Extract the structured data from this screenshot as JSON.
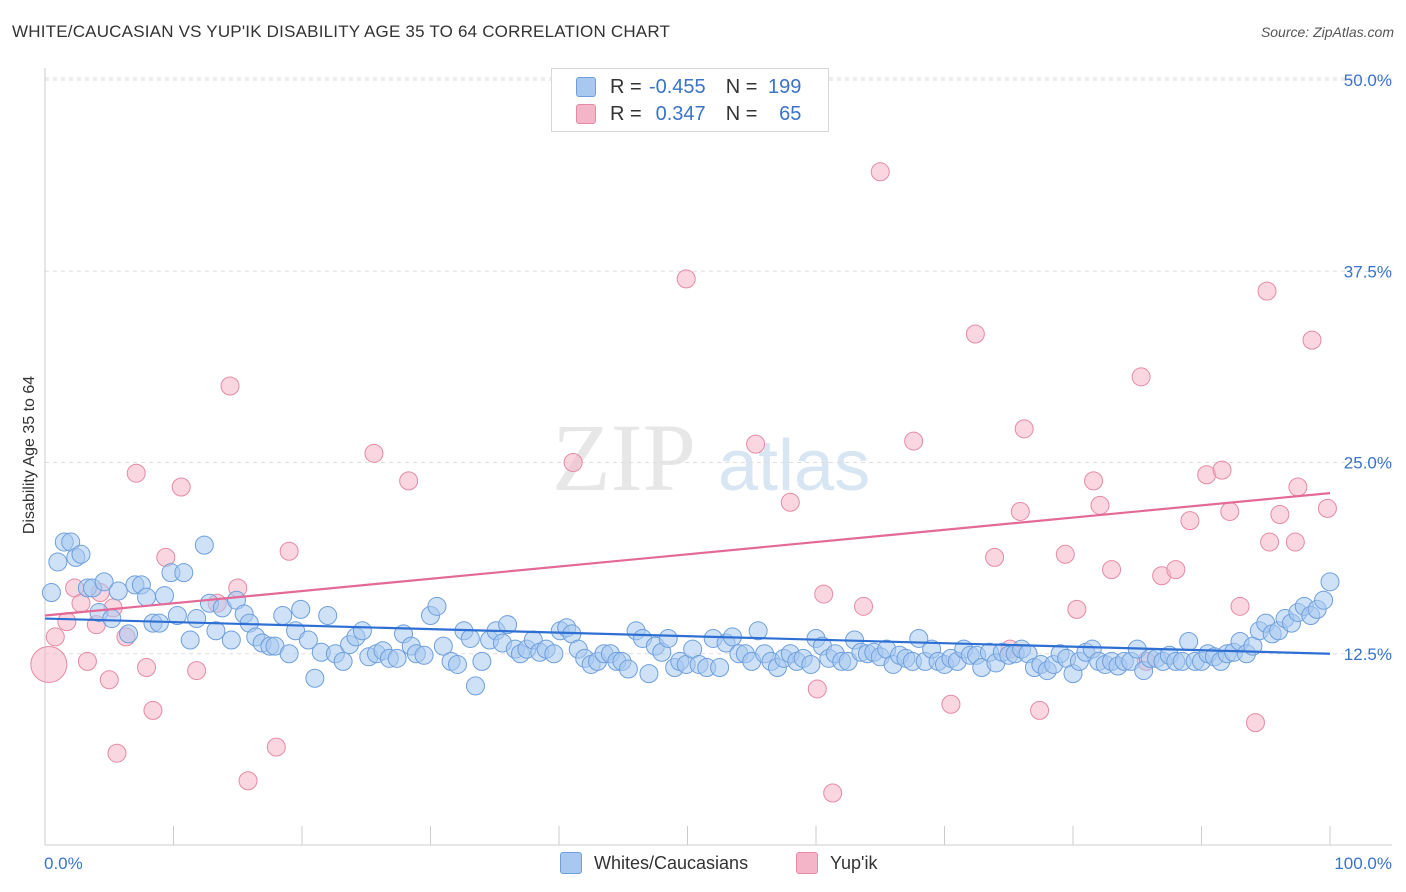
{
  "title": "WHITE/CAUCASIAN VS YUP'IK DISABILITY AGE 35 TO 64 CORRELATION CHART",
  "source": "Source: ZipAtlas.com",
  "watermark": {
    "zip": "ZIP",
    "atlas": "atlas"
  },
  "legend": {
    "rows": [
      {
        "r_label": "R =",
        "r_value": "-0.455",
        "n_label": "N =",
        "n_value": "199",
        "color": "#a8c8f0"
      },
      {
        "r_label": "R =",
        "r_value": "0.347",
        "n_label": "N =",
        "n_value": "65",
        "color": "#f5b5c8"
      }
    ]
  },
  "colors": {
    "blue_fill": "#a8c8f0",
    "blue_stroke": "#6e9fdc",
    "blue_line": "#2d6fd3",
    "pink_fill": "#f5b5c8",
    "pink_stroke": "#e58aa5",
    "pink_line": "#e36a96",
    "axis_text": "#3a73c8",
    "grid": "#dddddd"
  },
  "chart_data": {
    "type": "scatter",
    "title": "WHITE/CAUCASIAN VS YUP'IK DISABILITY AGE 35 TO 64 CORRELATION CHART",
    "xlabel": "",
    "ylabel": "Disability Age 35 to 64",
    "xlim": [
      0,
      100
    ],
    "ylim": [
      0,
      50
    ],
    "x_tick_labels": [
      "0.0%",
      "100.0%"
    ],
    "y_ticks": [
      12.5,
      25.0,
      37.5,
      50.0
    ],
    "y_tick_labels": [
      "12.5%",
      "25.0%",
      "37.5%",
      "50.0%"
    ],
    "grid": true,
    "legend_position": "bottom",
    "series": [
      {
        "name": "Whites/Caucasians",
        "color": "#a8c8f0",
        "trend": {
          "x": [
            0,
            100
          ],
          "y": [
            14.8,
            12.5
          ]
        },
        "points": [
          [
            0.5,
            16.5
          ],
          [
            1,
            18.5
          ],
          [
            1.5,
            19.8
          ],
          [
            2,
            19.8
          ],
          [
            2.4,
            18.8
          ],
          [
            2.8,
            19.0
          ],
          [
            3.3,
            16.8
          ],
          [
            3.7,
            16.8
          ],
          [
            4.2,
            15.2
          ],
          [
            4.6,
            17.2
          ],
          [
            5.2,
            14.8
          ],
          [
            5.7,
            16.6
          ],
          [
            6.5,
            13.8
          ],
          [
            7,
            17.0
          ],
          [
            7.5,
            17.0
          ],
          [
            7.9,
            16.2
          ],
          [
            8.4,
            14.5
          ],
          [
            8.9,
            14.5
          ],
          [
            9.3,
            16.3
          ],
          [
            9.8,
            17.8
          ],
          [
            10.3,
            15.0
          ],
          [
            10.8,
            17.8
          ],
          [
            11.3,
            13.4
          ],
          [
            11.8,
            14.8
          ],
          [
            12.4,
            19.6
          ],
          [
            12.8,
            15.8
          ],
          [
            13.3,
            14.0
          ],
          [
            13.8,
            15.5
          ],
          [
            14.5,
            13.4
          ],
          [
            14.9,
            16.0
          ],
          [
            15.5,
            15.1
          ],
          [
            15.9,
            14.5
          ],
          [
            16.4,
            13.6
          ],
          [
            16.9,
            13.2
          ],
          [
            17.5,
            13.0
          ],
          [
            17.9,
            13.0
          ],
          [
            18.5,
            15.0
          ],
          [
            19.0,
            12.5
          ],
          [
            19.5,
            14.0
          ],
          [
            19.9,
            15.4
          ],
          [
            20.5,
            13.4
          ],
          [
            21.0,
            10.9
          ],
          [
            21.5,
            12.6
          ],
          [
            22,
            15.0
          ],
          [
            22.6,
            12.5
          ],
          [
            23.2,
            12.0
          ],
          [
            23.7,
            13.1
          ],
          [
            24.2,
            13.6
          ],
          [
            24.7,
            14.0
          ],
          [
            25.2,
            12.3
          ],
          [
            25.8,
            12.5
          ],
          [
            26.3,
            12.7
          ],
          [
            26.8,
            12.2
          ],
          [
            27.4,
            12.2
          ],
          [
            27.9,
            13.8
          ],
          [
            28.5,
            13.0
          ],
          [
            28.9,
            12.5
          ],
          [
            29.5,
            12.4
          ],
          [
            30.0,
            15.0
          ],
          [
            30.5,
            15.6
          ],
          [
            31.0,
            13.0
          ],
          [
            31.6,
            12.0
          ],
          [
            32.1,
            11.8
          ],
          [
            32.6,
            14.0
          ],
          [
            33.1,
            13.5
          ],
          [
            33.5,
            10.4
          ],
          [
            34.0,
            12.0
          ],
          [
            34.6,
            13.4
          ],
          [
            35.1,
            14.0
          ],
          [
            35.6,
            13.2
          ],
          [
            36.0,
            14.4
          ],
          [
            36.6,
            12.8
          ],
          [
            37.0,
            12.5
          ],
          [
            37.5,
            12.8
          ],
          [
            38.0,
            13.4
          ],
          [
            38.5,
            12.6
          ],
          [
            39.0,
            12.8
          ],
          [
            39.6,
            12.5
          ],
          [
            40.1,
            14.0
          ],
          [
            40.6,
            14.2
          ],
          [
            41.0,
            13.8
          ],
          [
            41.5,
            12.8
          ],
          [
            42.0,
            12.2
          ],
          [
            42.5,
            11.8
          ],
          [
            43.0,
            12.0
          ],
          [
            43.5,
            12.5
          ],
          [
            44.0,
            12.5
          ],
          [
            44.5,
            12.0
          ],
          [
            44.9,
            12.0
          ],
          [
            45.4,
            11.5
          ],
          [
            46.0,
            14.0
          ],
          [
            46.5,
            13.5
          ],
          [
            47.0,
            11.2
          ],
          [
            47.5,
            13.0
          ],
          [
            48.0,
            12.6
          ],
          [
            48.5,
            13.5
          ],
          [
            49.0,
            11.6
          ],
          [
            49.4,
            12.0
          ],
          [
            49.9,
            11.8
          ],
          [
            50.4,
            12.8
          ],
          [
            50.9,
            11.8
          ],
          [
            51.5,
            11.6
          ],
          [
            52.0,
            13.5
          ],
          [
            52.5,
            11.6
          ],
          [
            53.0,
            13.2
          ],
          [
            53.5,
            13.6
          ],
          [
            54.0,
            12.5
          ],
          [
            54.5,
            12.5
          ],
          [
            55.0,
            12.0
          ],
          [
            55.5,
            14.0
          ],
          [
            56.0,
            12.5
          ],
          [
            56.5,
            12.0
          ],
          [
            57.0,
            11.6
          ],
          [
            57.5,
            12.2
          ],
          [
            58.0,
            12.5
          ],
          [
            58.5,
            12.0
          ],
          [
            59.0,
            12.2
          ],
          [
            59.6,
            11.8
          ],
          [
            60.0,
            13.5
          ],
          [
            60.5,
            13.0
          ],
          [
            61.0,
            12.2
          ],
          [
            61.5,
            12.5
          ],
          [
            62.0,
            12.0
          ],
          [
            62.5,
            12.0
          ],
          [
            63.0,
            13.4
          ],
          [
            63.5,
            12.6
          ],
          [
            64.0,
            12.5
          ],
          [
            64.5,
            12.6
          ],
          [
            65.0,
            12.3
          ],
          [
            65.5,
            12.8
          ],
          [
            66.0,
            11.8
          ],
          [
            66.5,
            12.4
          ],
          [
            67.0,
            12.2
          ],
          [
            67.5,
            12.0
          ],
          [
            68.0,
            13.5
          ],
          [
            68.5,
            12.0
          ],
          [
            69.0,
            12.8
          ],
          [
            69.5,
            12.0
          ],
          [
            70.0,
            11.8
          ],
          [
            70.5,
            12.2
          ],
          [
            71.0,
            12.0
          ],
          [
            71.5,
            12.8
          ],
          [
            72.0,
            12.4
          ],
          [
            72.5,
            12.4
          ],
          [
            72.9,
            11.6
          ],
          [
            73.5,
            12.6
          ],
          [
            74.0,
            11.9
          ],
          [
            74.5,
            12.6
          ],
          [
            75.0,
            12.4
          ],
          [
            75.5,
            12.5
          ],
          [
            76.0,
            12.8
          ],
          [
            76.5,
            12.5
          ],
          [
            77.0,
            11.6
          ],
          [
            77.5,
            11.8
          ],
          [
            78.0,
            11.4
          ],
          [
            78.5,
            11.8
          ],
          [
            79.0,
            12.5
          ],
          [
            79.5,
            12.2
          ],
          [
            80.0,
            11.2
          ],
          [
            80.5,
            12.0
          ],
          [
            81.0,
            12.6
          ],
          [
            81.5,
            12.8
          ],
          [
            82.0,
            12.0
          ],
          [
            82.5,
            11.8
          ],
          [
            83.0,
            12.0
          ],
          [
            83.5,
            11.7
          ],
          [
            84.0,
            12.0
          ],
          [
            84.5,
            12.0
          ],
          [
            85.0,
            12.8
          ],
          [
            85.5,
            11.4
          ],
          [
            86.0,
            12.2
          ],
          [
            86.5,
            12.2
          ],
          [
            87.0,
            12.0
          ],
          [
            87.5,
            12.4
          ],
          [
            88.0,
            12.0
          ],
          [
            88.5,
            12.0
          ],
          [
            89.0,
            13.3
          ],
          [
            89.5,
            12.0
          ],
          [
            90.0,
            12.0
          ],
          [
            90.5,
            12.5
          ],
          [
            91.0,
            12.3
          ],
          [
            91.5,
            12.0
          ],
          [
            92.0,
            12.5
          ],
          [
            92.5,
            12.6
          ],
          [
            93.0,
            13.3
          ],
          [
            93.5,
            12.5
          ],
          [
            94.0,
            13.0
          ],
          [
            94.5,
            14.0
          ],
          [
            95.0,
            14.5
          ],
          [
            95.5,
            13.8
          ],
          [
            96.0,
            14.0
          ],
          [
            96.5,
            14.8
          ],
          [
            97.0,
            14.5
          ],
          [
            97.5,
            15.2
          ],
          [
            98.0,
            15.6
          ],
          [
            98.5,
            15.0
          ],
          [
            99.0,
            15.4
          ],
          [
            99.5,
            16.0
          ],
          [
            100.0,
            17.2
          ]
        ]
      },
      {
        "name": "Yup'ik",
        "color": "#f5b5c8",
        "trend": {
          "x": [
            0,
            100
          ],
          "y": [
            15.0,
            23.0
          ]
        },
        "points": [
          [
            0.3,
            11.8
          ],
          [
            0.8,
            13.6
          ],
          [
            1.7,
            14.6
          ],
          [
            2.3,
            16.8
          ],
          [
            2.8,
            15.8
          ],
          [
            3.3,
            12.0
          ],
          [
            4.0,
            14.4
          ],
          [
            4.3,
            16.5
          ],
          [
            5.0,
            10.8
          ],
          [
            5.3,
            15.5
          ],
          [
            5.6,
            6.0
          ],
          [
            6.3,
            13.6
          ],
          [
            7.1,
            24.3
          ],
          [
            7.9,
            11.6
          ],
          [
            8.4,
            8.8
          ],
          [
            9.4,
            18.8
          ],
          [
            10.6,
            23.4
          ],
          [
            11.8,
            11.4
          ],
          [
            13.4,
            15.8
          ],
          [
            14.4,
            30.0
          ],
          [
            15.0,
            16.8
          ],
          [
            15.8,
            4.2
          ],
          [
            18.0,
            6.4
          ],
          [
            19.0,
            19.2
          ],
          [
            25.6,
            25.6
          ],
          [
            28.3,
            23.8
          ],
          [
            41.1,
            25.0
          ],
          [
            49.9,
            37.0
          ],
          [
            55.3,
            26.2
          ],
          [
            58.0,
            22.4
          ],
          [
            60.1,
            10.2
          ],
          [
            60.6,
            16.4
          ],
          [
            61.3,
            3.4
          ],
          [
            63.7,
            15.6
          ],
          [
            65.0,
            44.0
          ],
          [
            67.6,
            26.4
          ],
          [
            70.5,
            9.2
          ],
          [
            72.4,
            33.4
          ],
          [
            73.9,
            18.8
          ],
          [
            75.1,
            12.8
          ],
          [
            75.9,
            21.8
          ],
          [
            76.2,
            27.2
          ],
          [
            77.4,
            8.8
          ],
          [
            79.4,
            19.0
          ],
          [
            80.3,
            15.4
          ],
          [
            81.6,
            23.8
          ],
          [
            82.1,
            22.2
          ],
          [
            83.0,
            18.0
          ],
          [
            85.3,
            30.6
          ],
          [
            85.7,
            12.0
          ],
          [
            86.9,
            17.6
          ],
          [
            88.0,
            18.0
          ],
          [
            89.1,
            21.2
          ],
          [
            90.4,
            24.2
          ],
          [
            91.6,
            24.5
          ],
          [
            92.2,
            21.8
          ],
          [
            93.0,
            15.6
          ],
          [
            94.2,
            8.0
          ],
          [
            95.1,
            36.2
          ],
          [
            95.3,
            19.8
          ],
          [
            96.1,
            21.6
          ],
          [
            97.3,
            19.8
          ],
          [
            97.5,
            23.4
          ],
          [
            98.6,
            33.0
          ],
          [
            99.8,
            22.0
          ]
        ]
      }
    ]
  }
}
